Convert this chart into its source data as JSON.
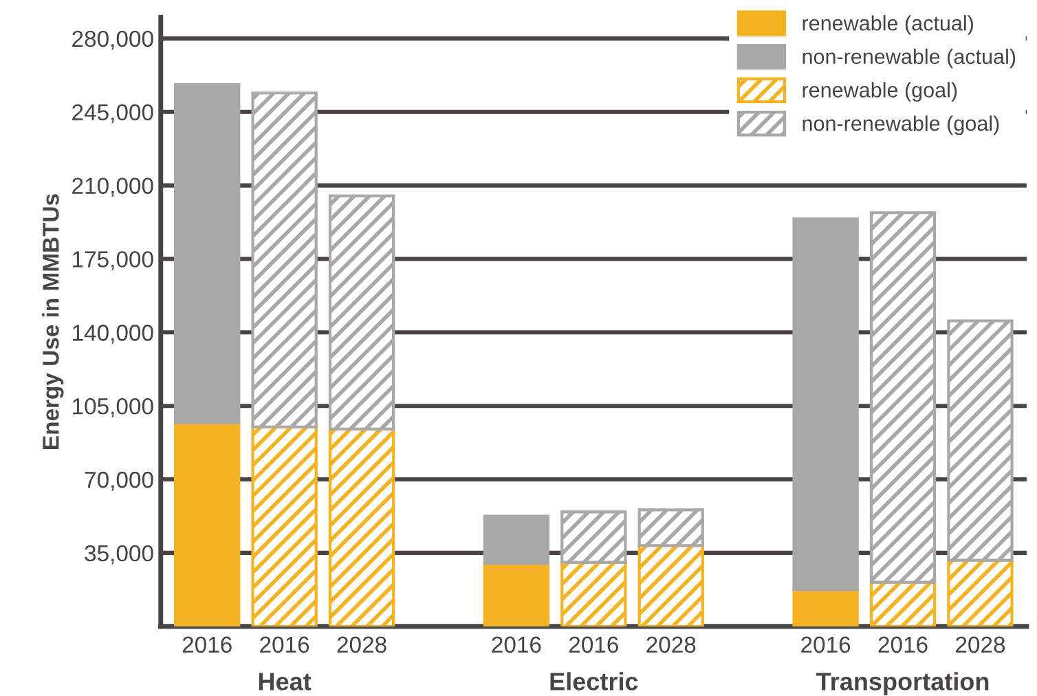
{
  "chart_data": {
    "type": "bar",
    "stacked": true,
    "ylabel": "Energy Use in MMBTUs",
    "categories": [
      "2016",
      "2016",
      "2028",
      null,
      "2016",
      "2016",
      "2028",
      null,
      "2016",
      "2016",
      "2028"
    ],
    "annotations": [
      "Heat",
      "Electric",
      "Transportation"
    ],
    "series": [
      {
        "name": "renewable (actual)",
        "color": "#f5b324",
        "values": [
          97000,
          null,
          null,
          null,
          30000,
          null,
          null,
          null,
          17500,
          null,
          null
        ]
      },
      {
        "name": "non-renewable (actual)",
        "color": "#a9a7a8",
        "values": [
          161000,
          null,
          null,
          null,
          22500,
          null,
          null,
          null,
          176500,
          null,
          null
        ]
      },
      {
        "name": "renewable (goal)",
        "color": "#f5b324",
        "values": [
          null,
          95000,
          94000,
          null,
          null,
          30500,
          38500,
          null,
          null,
          21000,
          31500
        ]
      },
      {
        "name": "non-renewable (goal)",
        "color": "#a9a7a8",
        "values": [
          null,
          159000,
          111000,
          null,
          null,
          24000,
          17000,
          null,
          null,
          176000,
          114000
        ]
      }
    ],
    "ylim": [
      0,
      290000
    ],
    "yticks": [
      {
        "value": 35000,
        "label": "35,000"
      },
      {
        "value": 70000,
        "label": "70,000"
      },
      {
        "value": 105000,
        "label": "105,000"
      },
      {
        "value": 140000,
        "label": "140,000"
      },
      {
        "value": 175000,
        "label": "175,000"
      },
      {
        "value": 210000,
        "label": "210,000"
      },
      {
        "value": 245000,
        "label": "245,000"
      },
      {
        "value": 280000,
        "label": "280,000"
      }
    ],
    "grid": "y",
    "legend": "top right"
  }
}
